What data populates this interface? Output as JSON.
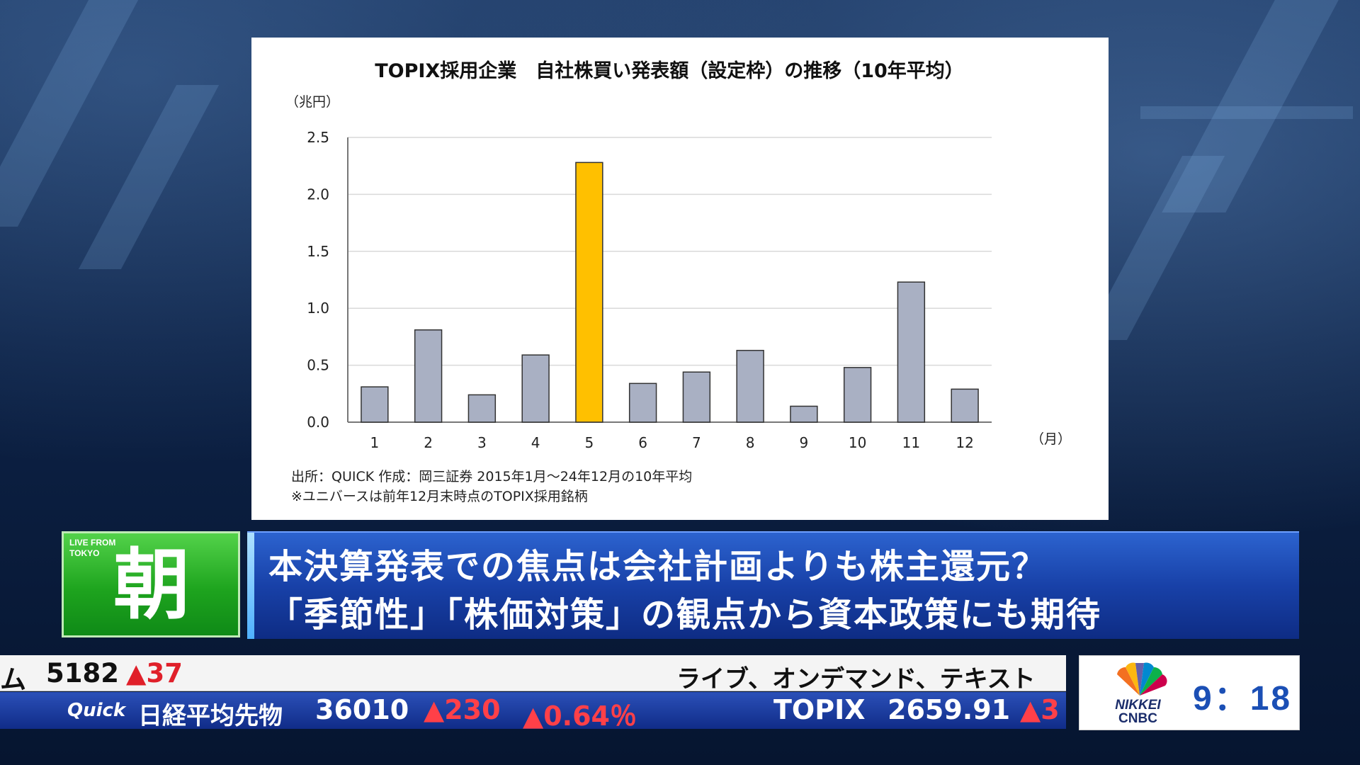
{
  "chart_data": {
    "type": "bar",
    "title": "TOPIX採用企業　自社株買い発表額（設定枠）の推移（10年平均）",
    "ylabel": "（兆円）",
    "xlabel": "（月）",
    "categories": [
      "1",
      "2",
      "3",
      "4",
      "5",
      "6",
      "7",
      "8",
      "9",
      "10",
      "11",
      "12"
    ],
    "values": [
      0.31,
      0.81,
      0.24,
      0.59,
      2.28,
      0.34,
      0.44,
      0.63,
      0.14,
      0.48,
      1.23,
      0.29
    ],
    "highlight_index": 4,
    "ylim": [
      0,
      2.5
    ],
    "yticks": [
      "0.0",
      "0.5",
      "1.0",
      "1.5",
      "2.0",
      "2.5"
    ],
    "grid": true,
    "bar_color": "#a9b0c3",
    "highlight_color": "#ffc000",
    "notes": [
      "出所：QUICK 作成：岡三証券 2015年1月～24年12月の10年平均",
      "※ユニバースは前年12月末時点のTOPIX採用銘柄"
    ]
  },
  "lower_third": {
    "live_label": "LIVE FROM TOKYO",
    "program_char": "朝",
    "headline_line1": "本決算発表での焦点は会社計画よりも株主還元？",
    "headline_line2": "「季節性」「株価対策」の観点から資本政策にも期待"
  },
  "ticker": {
    "top_left_name": "ム",
    "top_left_value": "5182",
    "top_left_change": "▲37",
    "top_right_text": "ライブ、オンデマンド、テキスト",
    "source": "Quick",
    "nikkei_label": "日経平均先物",
    "nikkei_value": "36010",
    "nikkei_change": "▲230",
    "nikkei_pct": "▲0.64％",
    "topix_label": "TOPIX",
    "topix_value": "2659.91",
    "topix_change": "▲3"
  },
  "clock": {
    "time": "9：18",
    "brand_line1": "NIKKEI",
    "brand_line2": "CNBC"
  }
}
